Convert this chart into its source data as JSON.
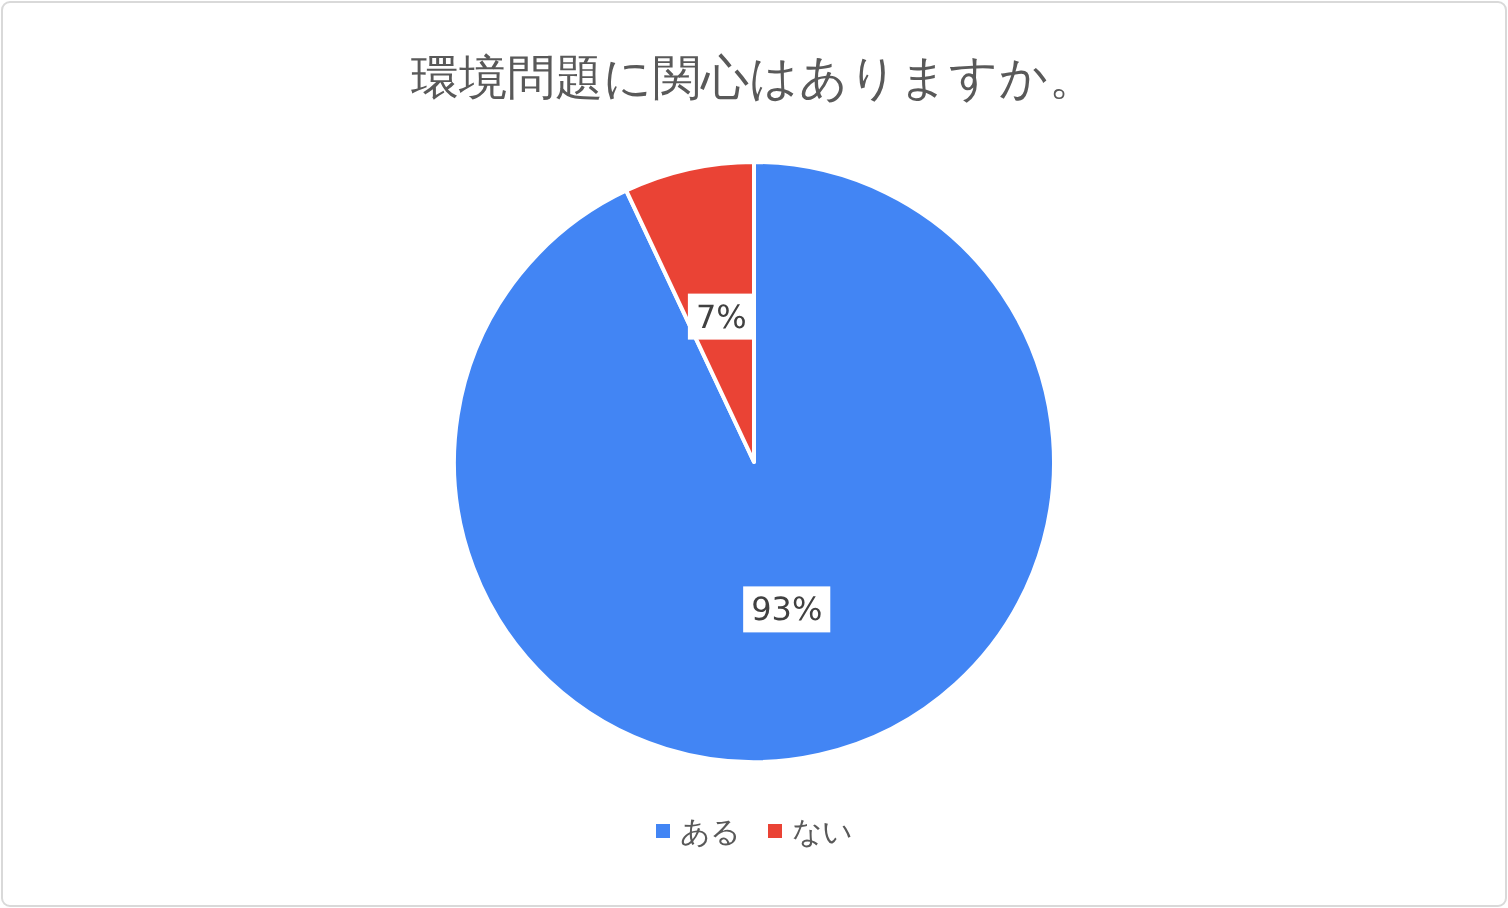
{
  "chart_data": {
    "type": "pie",
    "title": "環境問題に関心はありますか。",
    "categories": [
      "ある",
      "ない"
    ],
    "values": [
      93,
      7
    ],
    "value_labels": [
      "93%",
      "7%"
    ],
    "colors": [
      "#4285f4",
      "#ea4335"
    ],
    "legend": "bottom"
  }
}
